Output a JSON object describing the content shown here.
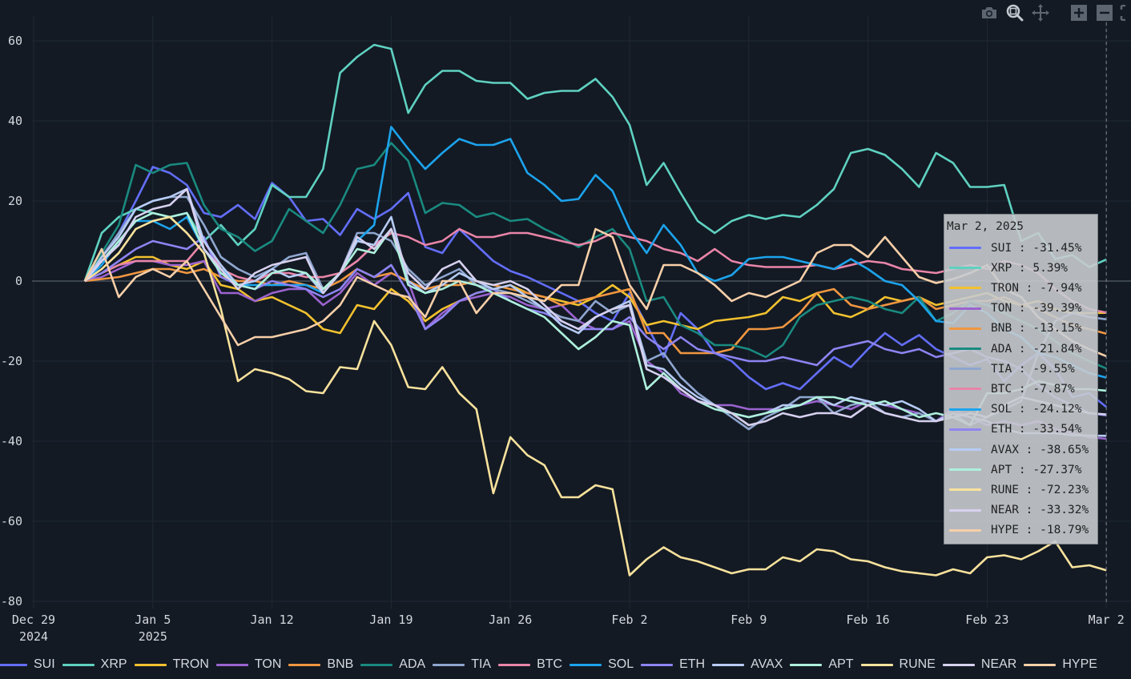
{
  "toolbar": {
    "buttons": [
      {
        "name": "camera-icon",
        "title": "Download plot as a png"
      },
      {
        "name": "zoom-icon",
        "title": "Zoom"
      },
      {
        "name": "pan-icon",
        "title": "Pan"
      },
      {
        "name": "zoom-in-icon",
        "title": "Zoom in"
      },
      {
        "name": "zoom-out-icon",
        "title": "Zoom out"
      },
      {
        "name": "autoscale-icon",
        "title": "Autoscale"
      }
    ]
  },
  "tooltip": {
    "title": "Mar 2, 2025",
    "rows": [
      {
        "name": "SUI",
        "value": "-31.45%"
      },
      {
        "name": "XRP",
        "value": "5.39%"
      },
      {
        "name": "TRON",
        "value": "-7.94%"
      },
      {
        "name": "TON",
        "value": "-39.39%"
      },
      {
        "name": "BNB",
        "value": "-13.15%"
      },
      {
        "name": "ADA",
        "value": "-21.84%"
      },
      {
        "name": "TIA",
        "value": "-9.55%"
      },
      {
        "name": "BTC",
        "value": "-7.87%"
      },
      {
        "name": "SOL",
        "value": "-24.12%"
      },
      {
        "name": "ETH",
        "value": "-33.54%"
      },
      {
        "name": "AVAX",
        "value": "-38.65%"
      },
      {
        "name": "APT",
        "value": "-27.37%"
      },
      {
        "name": "RUNE",
        "value": "-72.23%"
      },
      {
        "name": "NEAR",
        "value": "-33.32%"
      },
      {
        "name": "HYPE",
        "value": "-18.79%"
      }
    ]
  },
  "chart_data": {
    "type": "line",
    "title": "",
    "xlabel": "",
    "ylabel": "",
    "x_start": "2025-01-01",
    "x_end": "2025-03-02",
    "x_step_days": 1,
    "xlim": [
      "2024-12-29",
      "2025-03-02"
    ],
    "ylim": [
      -80,
      65
    ],
    "grid": true,
    "legend_position": "bottom",
    "hover_date": "2025-03-02",
    "x_ticks": [
      {
        "label": "Dec 29",
        "sub": "2024"
      },
      {
        "label": "Jan 5",
        "sub": "2025"
      },
      {
        "label": "Jan 12",
        "sub": ""
      },
      {
        "label": "Jan 19",
        "sub": ""
      },
      {
        "label": "Jan 26",
        "sub": ""
      },
      {
        "label": "Feb 2",
        "sub": ""
      },
      {
        "label": "Feb 9",
        "sub": ""
      },
      {
        "label": "Feb 16",
        "sub": ""
      },
      {
        "label": "Feb 23",
        "sub": ""
      },
      {
        "label": "Mar 2",
        "sub": ""
      }
    ],
    "y_ticks": [
      60,
      40,
      20,
      0,
      -20,
      -40,
      -60,
      -80
    ],
    "series": [
      {
        "name": "SUI",
        "color": "#636efa",
        "values": [
          0,
          6,
          12,
          20,
          28.5,
          27,
          24,
          17,
          16,
          19,
          15.5,
          24.5,
          21,
          15,
          15.5,
          11.5,
          18,
          15.5,
          18,
          22,
          8.5,
          7,
          13,
          9,
          5,
          2.5,
          1,
          -1,
          -3,
          -5,
          -8,
          -10,
          -3,
          -11,
          -19,
          -8,
          -12,
          -18,
          -20,
          -24,
          -27,
          -25.5,
          -27,
          -23,
          -19,
          -21.5,
          -17,
          -13,
          -16,
          -13.5,
          -17,
          -19,
          -21,
          -19.5,
          -25,
          -21,
          -18,
          -22,
          -29,
          -28,
          -31.45
        ]
      },
      {
        "name": "XRP",
        "color": "#5fd1c1",
        "values": [
          0,
          12,
          16,
          18,
          17,
          16,
          17,
          10,
          14,
          9,
          13,
          24,
          21,
          21,
          28,
          52,
          56,
          59,
          58,
          42,
          49,
          52.5,
          52.5,
          50,
          49.5,
          49.5,
          45.5,
          47,
          47.5,
          47.5,
          50.5,
          46,
          39,
          24,
          29.5,
          22,
          15,
          12,
          15,
          16.5,
          15.5,
          16.5,
          16,
          19,
          23,
          32,
          33,
          31.5,
          28,
          23.5,
          32,
          29.5,
          23.5,
          23.5,
          24,
          10,
          12,
          5.5,
          6.5,
          3.5,
          5.39
        ]
      },
      {
        "name": "TRON",
        "color": "#f2c12e",
        "values": [
          0,
          2,
          4,
          6,
          6,
          4,
          3,
          5,
          -1,
          -2,
          -5,
          -4,
          -6,
          -8,
          -12,
          -13,
          -6,
          -7,
          -2,
          -5,
          -10,
          -7,
          -5,
          -3,
          -2,
          -1,
          -3,
          -4,
          -5,
          -6,
          -4,
          -1,
          -4,
          -11,
          -10,
          -11,
          -12,
          -10,
          -9.5,
          -9,
          -8,
          -4,
          -5,
          -3,
          -8,
          -9,
          -7,
          -4,
          -5,
          -4,
          -6,
          -5,
          -4,
          -3,
          -5,
          -6,
          -5,
          -7,
          -8,
          -8,
          -7.94
        ]
      },
      {
        "name": "TON",
        "color": "#9b63cf",
        "values": [
          0,
          1,
          3,
          5,
          5,
          4,
          4,
          5,
          -3,
          -3,
          -5,
          -3,
          -2,
          -2,
          -6,
          -3,
          2,
          -1,
          2,
          0,
          -12,
          -8,
          -5,
          -4,
          -3,
          -4,
          -6,
          -7,
          -6,
          -10,
          -12,
          -12,
          -10,
          -20,
          -23,
          -28,
          -30,
          -31,
          -31,
          -32,
          -32,
          -32,
          -31,
          -30,
          -31,
          -32,
          -30,
          -31,
          -32,
          -33,
          -35,
          -32,
          -34,
          -36,
          -35,
          -36,
          -35,
          -37,
          -38,
          -39,
          -39.39
        ]
      },
      {
        "name": "BNB",
        "color": "#f09640",
        "values": [
          0,
          0.5,
          1,
          2,
          3,
          3,
          2,
          3,
          1,
          0,
          0,
          -1,
          0,
          -1,
          -2,
          0,
          3,
          1,
          2,
          0,
          -2,
          -1,
          -1,
          0,
          -1,
          -2,
          -3,
          -4,
          -6,
          -5,
          -4,
          -3,
          -2,
          -13,
          -13,
          -18,
          -18,
          -18,
          -17,
          -12,
          -12,
          -11.5,
          -8,
          -3,
          -2,
          -6,
          -7,
          -6,
          -5,
          -4,
          -7,
          -6,
          -5,
          -5,
          -4,
          -6,
          -7,
          -9,
          -11,
          -12,
          -13.15
        ]
      },
      {
        "name": "ADA",
        "color": "#1a8a80",
        "values": [
          0,
          7,
          14,
          29,
          27,
          29,
          29.5,
          19,
          13,
          11,
          7.5,
          10,
          18,
          15,
          12,
          19,
          28,
          29,
          34.5,
          30,
          17,
          19.5,
          19,
          16,
          17,
          15,
          15.5,
          13,
          11,
          8.5,
          11,
          13,
          8,
          -5,
          -4,
          -11,
          -13,
          -16,
          -16,
          -17,
          -19,
          -16,
          -9,
          -6,
          -5,
          -4,
          -5,
          -7,
          -8,
          -4,
          -10,
          -8,
          -5,
          -6,
          -8,
          -10,
          -12,
          -15,
          -18,
          -20,
          -21.84
        ]
      },
      {
        "name": "TIA",
        "color": "#8fa6cf",
        "values": [
          0,
          6,
          12,
          18,
          20,
          21,
          21,
          14,
          6,
          3,
          1,
          3,
          6,
          7,
          -2,
          2,
          12,
          12,
          10,
          3,
          -1,
          1,
          3,
          -1,
          -2,
          -3,
          -5,
          -7,
          -9,
          -10,
          -5,
          -8,
          -6,
          -20,
          -18,
          -24,
          -28,
          -31,
          -34,
          -37,
          -34,
          -32,
          -29,
          -29,
          -33,
          -31,
          -30,
          -33,
          -34,
          -33,
          -35,
          -33,
          -36,
          -34,
          -32,
          -30,
          -18,
          -10,
          -8,
          -9,
          -9.55
        ]
      },
      {
        "name": "BTC",
        "color": "#e985a8",
        "values": [
          0,
          2,
          4,
          5,
          5,
          5,
          5,
          10,
          3,
          1,
          0,
          2,
          2,
          1,
          1,
          2,
          5,
          9,
          12,
          11,
          9,
          10,
          13,
          11,
          11,
          12,
          12,
          11,
          10,
          9,
          10,
          12,
          11,
          10,
          8,
          7,
          5,
          8,
          5,
          4,
          3.5,
          3.5,
          3.5,
          4,
          3,
          4,
          5,
          4.5,
          3,
          2.5,
          2,
          3,
          4,
          3,
          5,
          4,
          2,
          -2,
          -5,
          -7,
          -7.87
        ]
      },
      {
        "name": "SOL",
        "color": "#1ca3ec",
        "values": [
          0,
          4,
          10,
          15,
          15,
          13,
          16,
          8,
          3,
          -1,
          -1,
          -1,
          -1,
          -1,
          -3,
          2,
          10,
          14,
          38.5,
          33,
          28,
          32,
          35.5,
          34,
          34,
          35.5,
          27,
          24,
          20,
          20.5,
          26.5,
          22.5,
          13,
          7,
          14,
          9,
          2,
          0,
          1.5,
          5.5,
          6,
          6,
          5,
          4,
          3,
          5.5,
          3,
          0,
          -1,
          -5,
          -10,
          -10.5,
          -6,
          -8,
          -12,
          -14,
          -18,
          -19,
          -21,
          -23,
          -24.12
        ]
      },
      {
        "name": "ETH",
        "color": "#8e84f2",
        "values": [
          0,
          2,
          5,
          8,
          10,
          9,
          8,
          11,
          1,
          -1,
          -2,
          0,
          -1,
          -2,
          -4,
          -2,
          3,
          1,
          4,
          -3,
          -12,
          -9,
          -5,
          -3,
          -2,
          -5,
          -7,
          -8,
          -10,
          -12,
          -12,
          -12,
          -9,
          -14,
          -17,
          -14,
          -17,
          -18,
          -19,
          -20,
          -20,
          -19,
          -20,
          -21,
          -17,
          -16,
          -15,
          -17,
          -18,
          -17,
          -19,
          -18,
          -17,
          -19,
          -20,
          -22,
          -26,
          -29,
          -31,
          -33,
          -33.54
        ]
      },
      {
        "name": "AVAX",
        "color": "#b7ccf5",
        "values": [
          0,
          6,
          11,
          18,
          20,
          21,
          23,
          10,
          4,
          -1,
          0,
          3,
          1,
          2,
          -3,
          2,
          10,
          9,
          16,
          0,
          -3,
          -1,
          2,
          0,
          -2,
          -1,
          -4,
          -7,
          -11,
          -13,
          -9,
          -7,
          -5,
          -21,
          -22,
          -26,
          -29,
          -31,
          -33,
          -34,
          -33,
          -31,
          -31,
          -29,
          -31,
          -29,
          -30,
          -31,
          -30,
          -32,
          -35,
          -33,
          -34,
          -35,
          -37,
          -38,
          -38,
          -38,
          -38.5,
          -38.6,
          -38.65
        ]
      },
      {
        "name": "APT",
        "color": "#aef0dc",
        "values": [
          0,
          5,
          10,
          15,
          17,
          16,
          17,
          8,
          2,
          -1,
          -2,
          2,
          3,
          2,
          -2,
          2,
          8,
          7,
          13,
          -1,
          -3,
          -2,
          0,
          -1,
          -3,
          -5,
          -7,
          -9,
          -13,
          -17,
          -14,
          -10,
          -11,
          -27,
          -23,
          -27,
          -30,
          -32,
          -33,
          -34,
          -33,
          -32,
          -31,
          -29,
          -29,
          -30,
          -31,
          -30,
          -32,
          -34,
          -33,
          -34,
          -36,
          -28,
          -28,
          -27,
          -25,
          -26,
          -27,
          -27,
          -27.37
        ]
      },
      {
        "name": "RUNE",
        "color": "#f9e29c",
        "values": [
          0,
          3,
          7,
          13,
          15,
          16,
          12,
          7,
          -7,
          -25,
          -22,
          -23,
          -24.5,
          -27.5,
          -28,
          -21.5,
          -22,
          -10,
          -16,
          -26.5,
          -27,
          -21.5,
          -28,
          -32,
          -53,
          -39,
          -43.5,
          -46,
          -54,
          -54,
          -51,
          -52,
          -73.5,
          -69.5,
          -66.5,
          -69,
          -70,
          -71.5,
          -73,
          -72,
          -72,
          -69,
          -70,
          -67,
          -67.5,
          -69.5,
          -70,
          -71.5,
          -72.5,
          -73,
          -73.5,
          -72,
          -73,
          -69,
          -68.5,
          -69.5,
          -67.5,
          -65,
          -71.5,
          -71,
          -72.23
        ]
      },
      {
        "name": "NEAR",
        "color": "#d7d1ef",
        "values": [
          0,
          5,
          9,
          16,
          18,
          19,
          23,
          8,
          3,
          -2,
          2,
          4,
          5,
          6,
          -3,
          2,
          11,
          8,
          13,
          2,
          -2,
          3,
          5,
          0,
          -1,
          0,
          -2,
          -6,
          -10,
          -12,
          -9,
          -7,
          -6,
          -22,
          -24,
          -27,
          -30,
          -31,
          -33,
          -36,
          -35,
          -33,
          -34,
          -33,
          -33,
          -34,
          -31,
          -33,
          -34,
          -35,
          -35,
          -34,
          -33,
          -34,
          -31,
          -29,
          -30,
          -31,
          -32,
          -33,
          -33.32
        ]
      },
      {
        "name": "HYPE",
        "color": "#f7cfa8",
        "values": [
          0,
          8,
          -4,
          1,
          3,
          1,
          5,
          -2,
          -9,
          -16,
          -14,
          -14,
          -13,
          -12,
          -10,
          -6,
          1,
          -1,
          -3,
          -4,
          -9,
          0,
          0,
          -8,
          -3,
          -3,
          -4,
          -5,
          -1,
          -1,
          13,
          11,
          -1,
          -7,
          4,
          4,
          2,
          -1,
          -5,
          -3,
          -4,
          -2,
          0,
          7,
          9,
          9,
          6,
          11,
          6,
          1,
          -0.5,
          0.5,
          2,
          4,
          -2,
          -4,
          -9,
          -12,
          -15,
          -17,
          -18.79
        ]
      }
    ]
  },
  "legend": {
    "items": [
      "SUI",
      "XRP",
      "TRON",
      "TON",
      "BNB",
      "ADA",
      "TIA",
      "BTC",
      "SOL",
      "ETH",
      "AVAX",
      "APT",
      "RUNE",
      "NEAR",
      "HYPE"
    ]
  }
}
